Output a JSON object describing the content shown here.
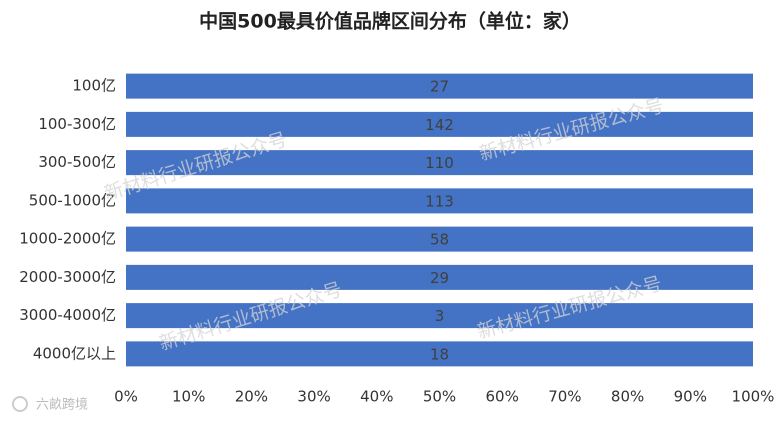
{
  "chart_data": {
    "type": "bar",
    "orientation": "horizontal",
    "stacking": "percent",
    "title": "中国500最具价值品牌区间分布（单位：家）",
    "categories": [
      "100亿",
      "100-300亿",
      "300-500亿",
      "500-1000亿",
      "1000-2000亿",
      "2000-3000亿",
      "3000-4000亿",
      "4000亿以上"
    ],
    "values": [
      27,
      142,
      110,
      113,
      58,
      29,
      3,
      18
    ],
    "color": "#4472c4",
    "xlim": [
      0,
      100
    ],
    "xticks": [
      {
        "value": 0,
        "label": "0%"
      },
      {
        "value": 10,
        "label": "10%"
      },
      {
        "value": 20,
        "label": "20%"
      },
      {
        "value": 30,
        "label": "30%"
      },
      {
        "value": 40,
        "label": "40%"
      },
      {
        "value": 50,
        "label": "50%"
      },
      {
        "value": 60,
        "label": "60%"
      },
      {
        "value": 70,
        "label": "70%"
      },
      {
        "value": 80,
        "label": "80%"
      },
      {
        "value": 90,
        "label": "90%"
      },
      {
        "value": 100,
        "label": "100%"
      }
    ],
    "grid": false,
    "watermark": "新材料行业研报公众号",
    "logo": "六畝跨境"
  }
}
